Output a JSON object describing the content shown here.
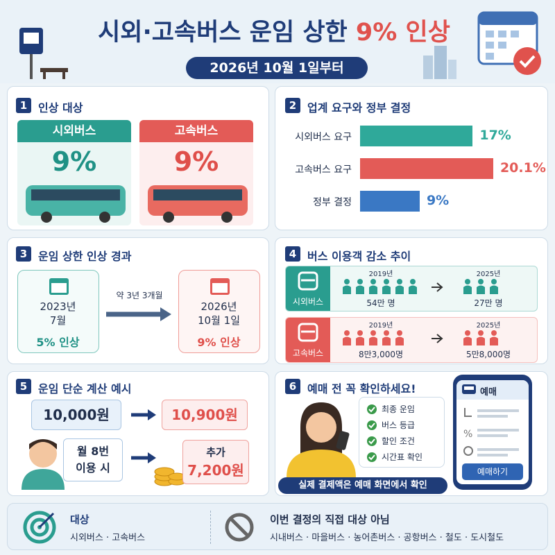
{
  "header": {
    "title_part1": "시외·고속버스 운임 상한",
    "title_highlight": "9% 인상",
    "subtitle": "2026년 10월 1일부터"
  },
  "sections": [
    {
      "number": "1",
      "title": "인상 대상",
      "cards": [
        {
          "label": "시외버스",
          "value": "9%"
        },
        {
          "label": "고속버스",
          "value": "9%"
        }
      ]
    },
    {
      "number": "2",
      "title": "업계 요구와 정부 결정",
      "bars": [
        {
          "label": "시외버스 요구",
          "value": 17,
          "value_label": "17%",
          "color": "#2fa99a"
        },
        {
          "label": "고속버스 요구",
          "value": 20.1,
          "value_label": "20.1%",
          "color": "#e35b57"
        },
        {
          "label": "정부 결정",
          "value": 9,
          "value_label": "9%",
          "color": "#3a78c4"
        }
      ]
    },
    {
      "number": "3",
      "title": "운임 상한 인상 경과",
      "from": {
        "date_line1": "2023년",
        "date_line2": "7월",
        "change": "5% 인상"
      },
      "interval": "약 3년 3개월",
      "to": {
        "date_line1": "2026년",
        "date_line2": "10월 1일",
        "change": "9% 인상"
      }
    },
    {
      "number": "4",
      "title": "버스 이용객 감소 추이",
      "rows": [
        {
          "label": "시외버스",
          "year_from": "2019년",
          "count_from": "54만 명",
          "year_to": "2025년",
          "count_to": "27만 명"
        },
        {
          "label": "고속버스",
          "year_from": "2019년",
          "count_from": "8만3,000명",
          "year_to": "2025년",
          "count_to": "5만8,000명"
        }
      ]
    },
    {
      "number": "5",
      "title": "운임 단순 계산 예시",
      "base_fare": "10,000원",
      "new_fare": "10,900원",
      "usage_line1": "월 8번",
      "usage_line2": "이용 시",
      "extra_label": "추가",
      "extra_amount": "7,200원"
    },
    {
      "number": "6",
      "title": "예매 전 꼭 확인하세요!",
      "checklist": [
        "최종 운임",
        "버스 등급",
        "할인 조건",
        "시간표 확인"
      ],
      "app_title": "예매",
      "app_button": "예매하기",
      "note": "실제 결제액은 예매 화면에서 확인"
    }
  ],
  "footer": {
    "target_title": "대상",
    "target_text": "시외버스 · 고속버스",
    "exclude_title": "이번 결정의 직접 대상 아님",
    "exclude_text": "시내버스 · 마을버스 · 농어촌버스 · 공항버스 · 철도 · 도시철도"
  }
}
